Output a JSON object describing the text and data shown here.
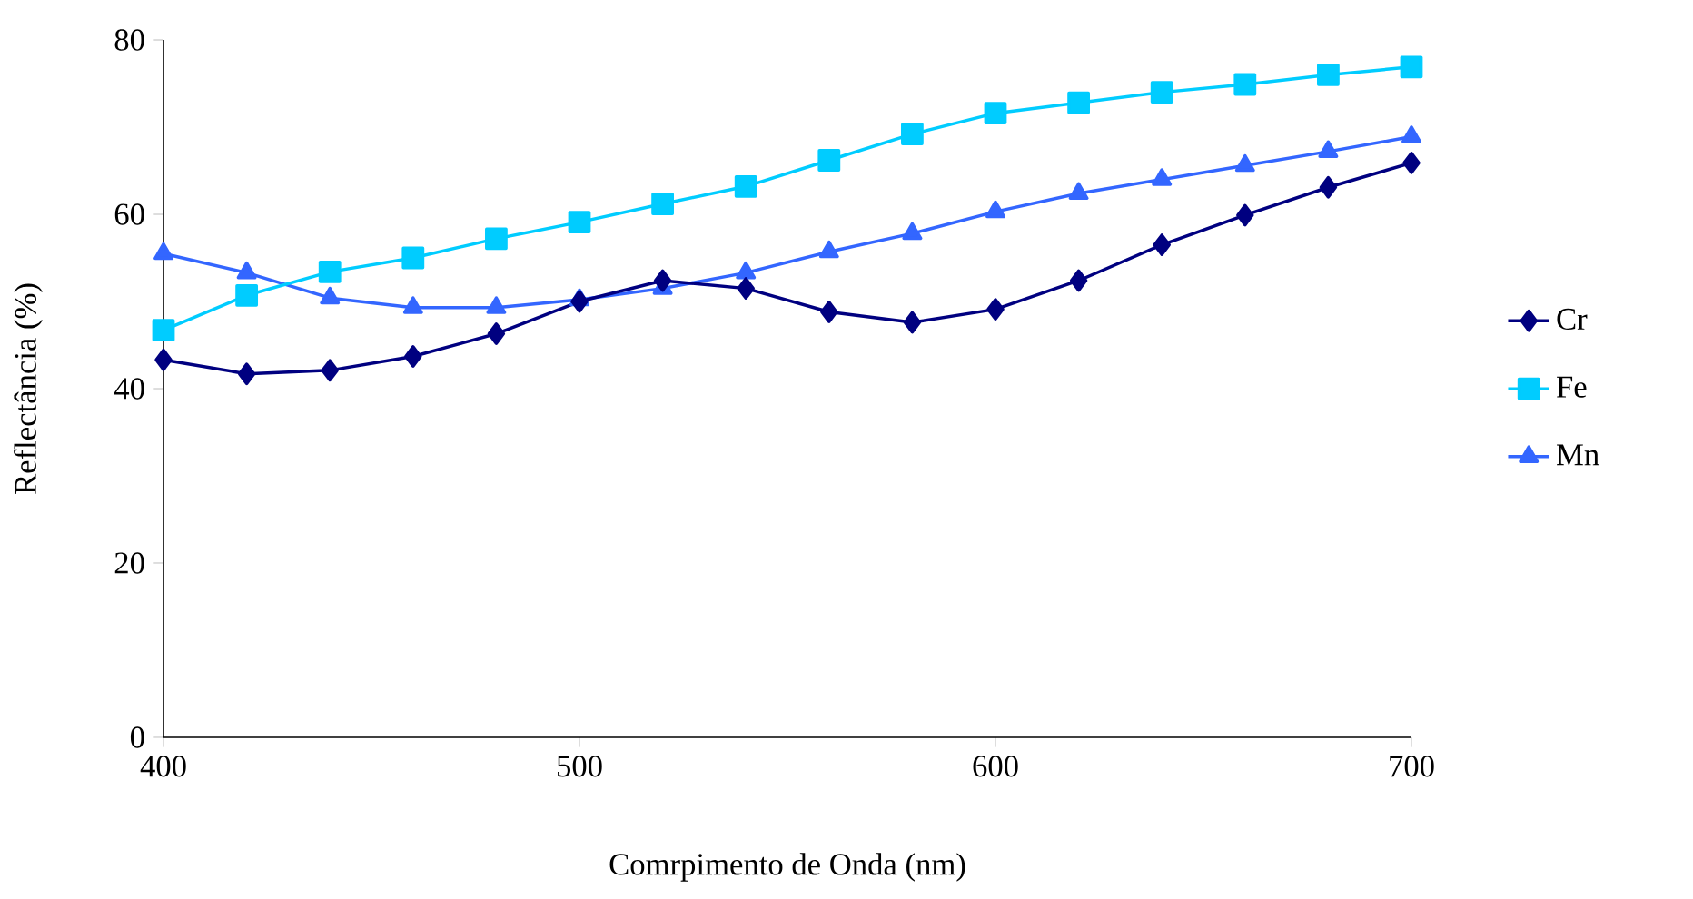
{
  "chart_data": {
    "type": "line",
    "xlabel": "Comrpimento de Onda (nm)",
    "ylabel": "Reflectância (%)",
    "x": [
      400,
      420,
      440,
      460,
      480,
      500,
      520,
      540,
      560,
      580,
      600,
      620,
      640,
      660,
      680,
      700
    ],
    "xlim": [
      400,
      700
    ],
    "xticks": [
      400,
      500,
      600,
      700
    ],
    "ylim": [
      0,
      80
    ],
    "yticks": [
      0,
      20,
      40,
      60,
      80
    ],
    "legend": "right",
    "line_style": "solid",
    "series": [
      {
        "name": "Cr",
        "color": "#000080",
        "marker": "diamond",
        "values": [
          43.3,
          41.7,
          42.1,
          43.7,
          46.3,
          50.0,
          52.4,
          51.5,
          48.8,
          47.6,
          49.1,
          52.4,
          56.5,
          59.9,
          63.1,
          65.9
        ]
      },
      {
        "name": "Fe",
        "color": "#00ccff",
        "marker": "square",
        "values": [
          46.7,
          50.7,
          53.4,
          55.0,
          57.2,
          59.1,
          61.2,
          63.2,
          66.2,
          69.2,
          71.6,
          72.8,
          74.0,
          74.9,
          76.0,
          76.9
        ]
      },
      {
        "name": "Mn",
        "color": "#3366ff",
        "marker": "triangle",
        "values": [
          55.5,
          53.3,
          50.4,
          49.3,
          49.3,
          50.2,
          51.5,
          53.3,
          55.7,
          57.8,
          60.3,
          62.4,
          64.0,
          65.6,
          67.2,
          68.9
        ]
      }
    ]
  }
}
